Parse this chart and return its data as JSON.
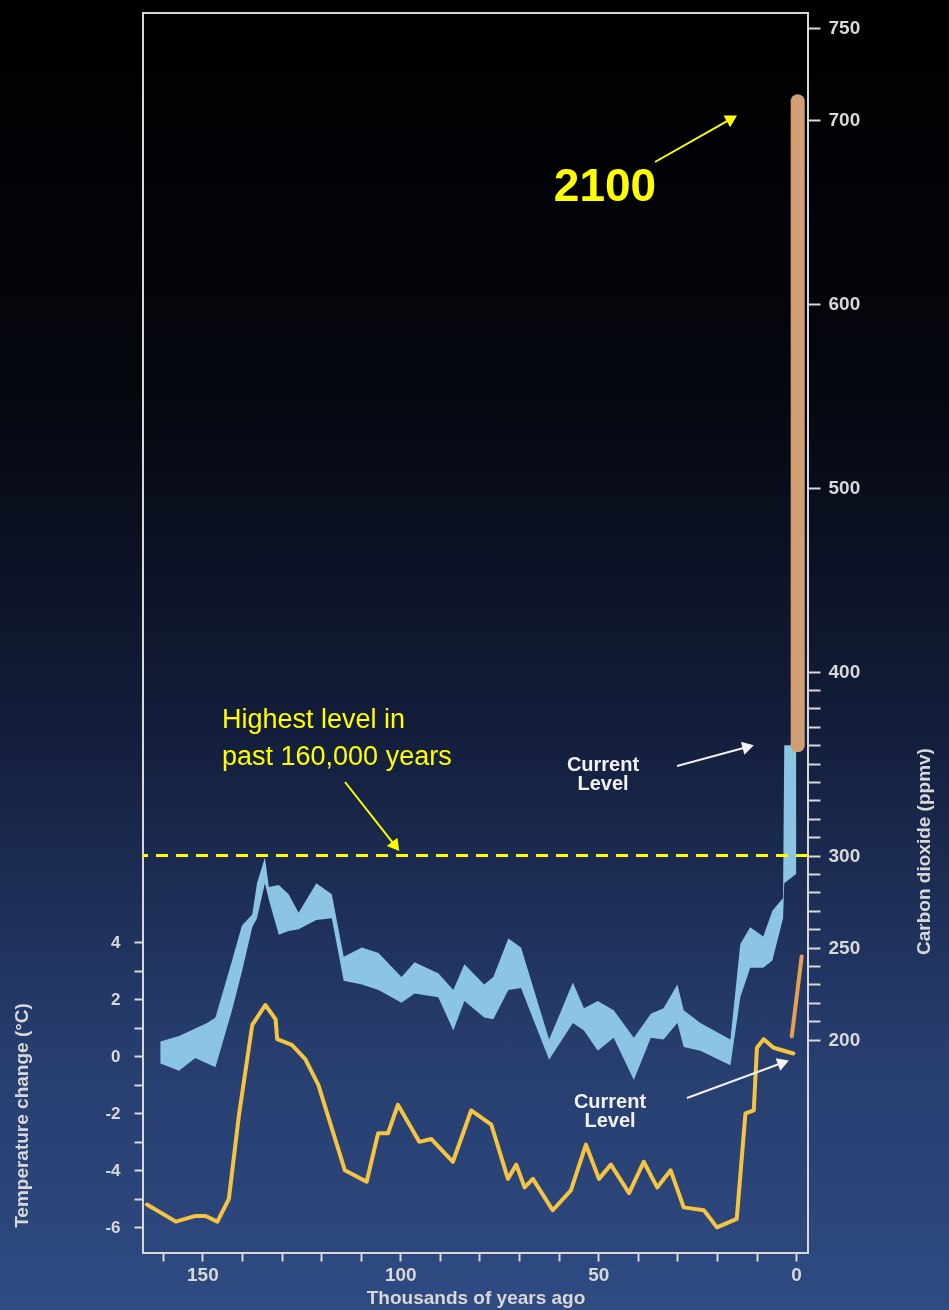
{
  "chart_data": {
    "type": "line",
    "xlabel": "Thousands of years ago",
    "ylabel": "Temperature change (°C)",
    "y2label": "Carbon dioxide (ppmv)",
    "xlim": [
      165,
      -3
    ],
    "xticks": [
      150,
      100,
      50,
      0,
      {
        "value": 160,
        "label": null
      },
      {
        "value": 140,
        "label": null
      },
      {
        "value": 130,
        "label": null
      },
      {
        "value": 120,
        "label": null
      },
      {
        "value": 110,
        "label": null
      },
      {
        "value": 90,
        "label": null
      },
      {
        "value": 80,
        "label": null
      },
      {
        "value": 70,
        "label": null
      },
      {
        "value": 60,
        "label": null
      },
      {
        "value": 40,
        "label": null
      },
      {
        "value": 30,
        "label": null
      },
      {
        "value": 20,
        "label": null
      },
      {
        "value": 10,
        "label": null
      }
    ],
    "ylim": [
      -6.9,
      36.6
    ],
    "yticks": [
      4,
      2,
      0,
      -2,
      -4,
      -6,
      {
        "value": 3,
        "label": null
      },
      {
        "value": 1,
        "label": null
      },
      {
        "value": -1,
        "label": null
      },
      {
        "value": -3,
        "label": null
      },
      {
        "value": -5,
        "label": null
      }
    ],
    "y2lim": [
      84,
      758
    ],
    "y2ticks": [
      750,
      700,
      600,
      500,
      400,
      300,
      250,
      200,
      {
        "value": 210,
        "label": null
      },
      {
        "value": 220,
        "label": null
      },
      {
        "value": 230,
        "label": null
      },
      {
        "value": 240,
        "label": null
      },
      {
        "value": 260,
        "label": null
      },
      {
        "value": 270,
        "label": null
      },
      {
        "value": 280,
        "label": null
      },
      {
        "value": 290,
        "label": null
      },
      {
        "value": 310,
        "label": null
      },
      {
        "value": 320,
        "label": null
      },
      {
        "value": 330,
        "label": null
      },
      {
        "value": 340,
        "label": null
      },
      {
        "value": 350,
        "label": null
      },
      {
        "value": 360,
        "label": null
      },
      {
        "value": 370,
        "label": null
      },
      {
        "value": 380,
        "label": null
      },
      {
        "value": 390,
        "label": null
      }
    ],
    "series": [
      {
        "type": "area",
        "axis": "y2",
        "color": "#8cc4e4",
        "x": [
          160.6,
          155.9,
          151.8,
          148.8,
          146.7,
          142.5,
          140.0,
          137.4,
          136.2,
          134.2,
          133.2,
          130.7,
          128.2,
          125.7,
          121.2,
          117.3,
          114.3,
          109.7,
          105.5,
          99.7,
          96.4,
          90.4,
          86.6,
          83.8,
          78.8,
          76.5,
          72.7,
          69.5,
          62.4,
          56.4,
          53.6,
          50.1,
          46.1,
          41.0,
          36.7,
          33.5,
          30.0,
          28.4,
          24.2,
          16.6,
          14.1,
          11.6,
          8.3,
          6.0,
          3.3,
          3.0,
          0
        ],
        "lower": [
          187,
          183,
          190,
          187,
          185,
          216,
          237,
          261,
          266,
          285,
          276,
          257,
          259,
          260,
          265,
          266,
          232,
          230,
          227,
          220,
          225,
          223,
          205,
          221,
          212,
          211,
          227,
          228,
          189,
          209,
          205,
          194,
          201,
          178,
          201,
          200,
          209,
          196,
          194,
          186,
          223,
          239,
          239,
          243,
          266,
          285,
          290
        ],
        "values": [
          null,
          null,
          null,
          null,
          null,
          null,
          null,
          null,
          null,
          null,
          null,
          null,
          null,
          null,
          null,
          null,
          null,
          null,
          null,
          null,
          null,
          null,
          null,
          null,
          null,
          null,
          null,
          null,
          null,
          null,
          null,
          null,
          null,
          null,
          null,
          null,
          null,
          null,
          null,
          null,
          null,
          null,
          null,
          null,
          null,
          null,
          null
        ],
        "upper": [
          199,
          202,
          206,
          209,
          212,
          243,
          262,
          268,
          285,
          299,
          283,
          284,
          279,
          269,
          285,
          279,
          245,
          250,
          247,
          234,
          242,
          236,
          227,
          241,
          230,
          234,
          255,
          250,
          200,
          231,
          217,
          221,
          216,
          201,
          214,
          217,
          230,
          216,
          209,
          200,
          252,
          261,
          256,
          270,
          277,
          360,
          360
        ]
      },
      {
        "axis": "y2",
        "color": "#d29f74",
        "x": [
          -0.4,
          -0.4
        ],
        "values": [
          360,
          710
        ]
      },
      {
        "color": "#f5c542",
        "x": [
          164,
          156.7,
          151.7,
          149.2,
          146.2,
          143.3,
          140.8,
          137.4,
          134.1,
          131.5,
          131.1,
          127.4,
          124.0,
          120.7,
          114.0,
          108.5,
          105.6,
          103.1,
          100.6,
          95.2,
          92.2,
          86.7,
          82.1,
          77.0,
          72.8,
          70.7,
          68.6,
          66.5,
          61.5,
          56.9,
          53.1,
          49.8,
          46.8,
          42.2,
          38.5,
          35.1,
          31.7,
          28.4,
          23.3,
          20.0,
          15.0,
          12.8,
          10.7,
          9.9,
          8.2,
          5.7,
          0.7
        ],
        "values": [
          -5.2,
          -5.8,
          -5.6,
          -5.6,
          -5.8,
          -5.0,
          -2.1,
          1.1,
          1.8,
          1.3,
          0.6,
          0.4,
          -0.1,
          -1.0,
          -4.0,
          -4.4,
          -2.7,
          -2.7,
          -1.7,
          -3.0,
          -2.9,
          -3.7,
          -1.9,
          -2.4,
          -4.3,
          -3.8,
          -4.6,
          -4.3,
          -5.4,
          -4.7,
          -3.1,
          -4.3,
          -3.8,
          -4.8,
          -3.7,
          -4.6,
          -4.0,
          -5.3,
          -5.4,
          -6.0,
          -5.7,
          -2.0,
          -1.9,
          0.3,
          0.6,
          0.3,
          0.1
        ]
      },
      {
        "color": "#e8a050",
        "x": [
          1.1,
          -1.4
        ],
        "values": [
          0.7,
          3.5
        ]
      }
    ],
    "ref_lines": [
      {
        "axis": "y2",
        "value": 300,
        "label": "Highest level in past 160,000 years",
        "color": "#ffff00",
        "line_style": "dashed"
      }
    ],
    "annotations": [
      "2100",
      "Current Level",
      "Current Level"
    ]
  }
}
